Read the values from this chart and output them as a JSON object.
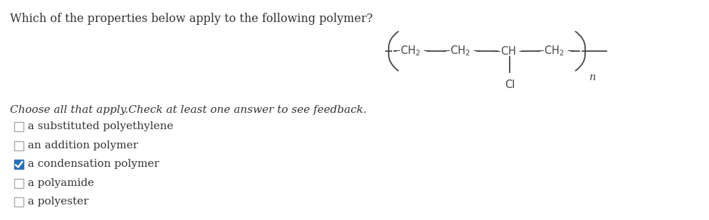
{
  "title": "Which of the properties below apply to the following polymer?",
  "title_fontsize": 11.5,
  "title_color": "#222222",
  "choose_text": "Choose all that apply.​Check at least one answer to see feedback.",
  "choose_fontsize": 11,
  "options": [
    {
      "label": "a substituted polyethylene",
      "checked": false
    },
    {
      "label": "an addition polymer",
      "checked": false
    },
    {
      "label": "a condensation polymer",
      "checked": true
    },
    {
      "label": "a polyamide",
      "checked": false
    },
    {
      "label": "a polyester",
      "checked": false
    }
  ],
  "option_fontsize": 11,
  "checked_color": "#2a6ebb",
  "unchecked_color": "#ffffff",
  "checkbox_edge_color": "#aaaaaa",
  "check_mark_color": "#ffffff",
  "bg_color": "#ffffff",
  "text_color": "#333333"
}
